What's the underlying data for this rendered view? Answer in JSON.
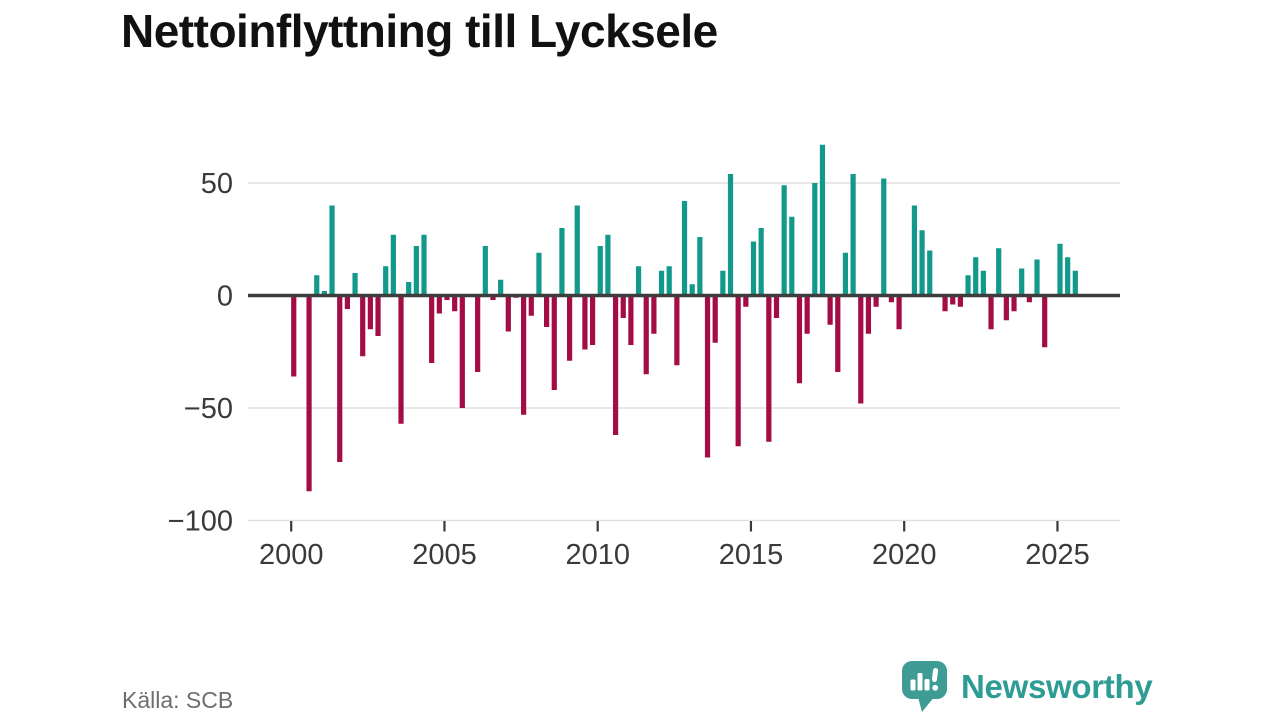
{
  "title": "Nettoinflyttning till Lycksele",
  "footer": {
    "source": "Källa: SCB",
    "brand": "Newsworthy"
  },
  "colors": {
    "background": "#FFFFFF",
    "positive_bar": "#12998C",
    "negative_bar": "#A30C45",
    "gridline": "#E1E1E1",
    "zero_line": "#3D3D3D",
    "axis_text": "#3A3A3A",
    "title_text": "#111111",
    "source_text": "#6E6E6E",
    "logo_icon": "#3E9C95",
    "brand_text": "#2D9C94"
  },
  "icons": {
    "logo": "newsworthy-speech-bubble-bar-chart-icon"
  },
  "chart_data": {
    "type": "bar",
    "title": "Nettoinflyttning till Lycksele",
    "frequency": "quarterly",
    "start_year": 2000,
    "start_quarter": 1,
    "end_year": 2025,
    "end_quarter": 3,
    "x_tick_years": [
      2000,
      2005,
      2010,
      2015,
      2020,
      2025
    ],
    "x_tick_labels": [
      "2000",
      "2005",
      "2010",
      "2015",
      "2020",
      "2025"
    ],
    "y_ticks": [
      50,
      0,
      -50,
      -100
    ],
    "y_tick_labels": [
      "50",
      "0",
      "−50",
      "−100"
    ],
    "ylim": [
      -100,
      70
    ],
    "grid": true,
    "legend": false,
    "positive_color": "#12998C",
    "negative_color": "#A30C45",
    "values": [
      -36,
      0,
      -87,
      9,
      2,
      40,
      -74,
      -6,
      10,
      -27,
      -15,
      -18,
      13,
      27,
      -57,
      6,
      22,
      27,
      -30,
      -8,
      -2,
      -7,
      -50,
      0,
      -34,
      22,
      -2,
      7,
      -16,
      -1,
      -53,
      -9,
      19,
      -14,
      -42,
      30,
      -29,
      40,
      -24,
      -22,
      22,
      27,
      -62,
      -10,
      -22,
      13,
      -35,
      -17,
      11,
      13,
      -31,
      42,
      5,
      26,
      -72,
      -21,
      11,
      54,
      -67,
      -5,
      24,
      30,
      -65,
      -10,
      49,
      35,
      -39,
      -17,
      50,
      67,
      -13,
      -34,
      19,
      54,
      -48,
      -17,
      -5,
      52,
      -3,
      -15,
      0,
      40,
      29,
      20,
      0,
      -7,
      -4,
      -5,
      9,
      17,
      11,
      -15,
      21,
      -11,
      -7,
      12,
      -3,
      16,
      -23,
      0,
      23,
      17,
      11
    ]
  }
}
